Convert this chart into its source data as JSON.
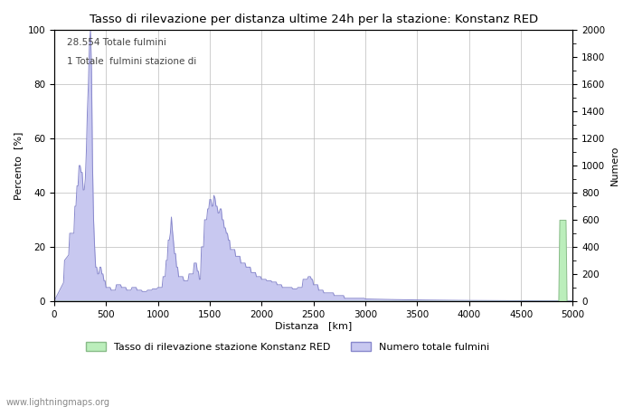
{
  "title": "Tasso di rilevazione per distanza ultime 24h per la stazione: Konstanz RED",
  "xlabel": "Distanza   [km]",
  "ylabel_left": "Percento  [%]",
  "ylabel_right": "Numero",
  "annotation_line1": "28.554 Totale fulmini",
  "annotation_line2": "1 Totale  fulmini stazione di",
  "xlim": [
    0,
    5000
  ],
  "ylim_left": [
    0,
    100
  ],
  "ylim_right": [
    0,
    2000
  ],
  "xticks": [
    0,
    500,
    1000,
    1500,
    2000,
    2500,
    3000,
    3500,
    4000,
    4500,
    5000
  ],
  "yticks_left": [
    0,
    20,
    40,
    60,
    80,
    100
  ],
  "yticks_right": [
    0,
    200,
    400,
    600,
    800,
    1000,
    1200,
    1400,
    1600,
    1800,
    2000
  ],
  "legend_label_green": "Tasso di rilevazione stazione Konstanz RED",
  "legend_label_blue": "Numero totale fulmini",
  "watermark": "www.lightningmaps.org",
  "blue_fill_color": "#c8c8f0",
  "blue_line_color": "#8888cc",
  "green_fill_color": "#bbeebb",
  "green_line_color": "#88bb88",
  "background_color": "#ffffff",
  "grid_color": "#bbbbbb"
}
